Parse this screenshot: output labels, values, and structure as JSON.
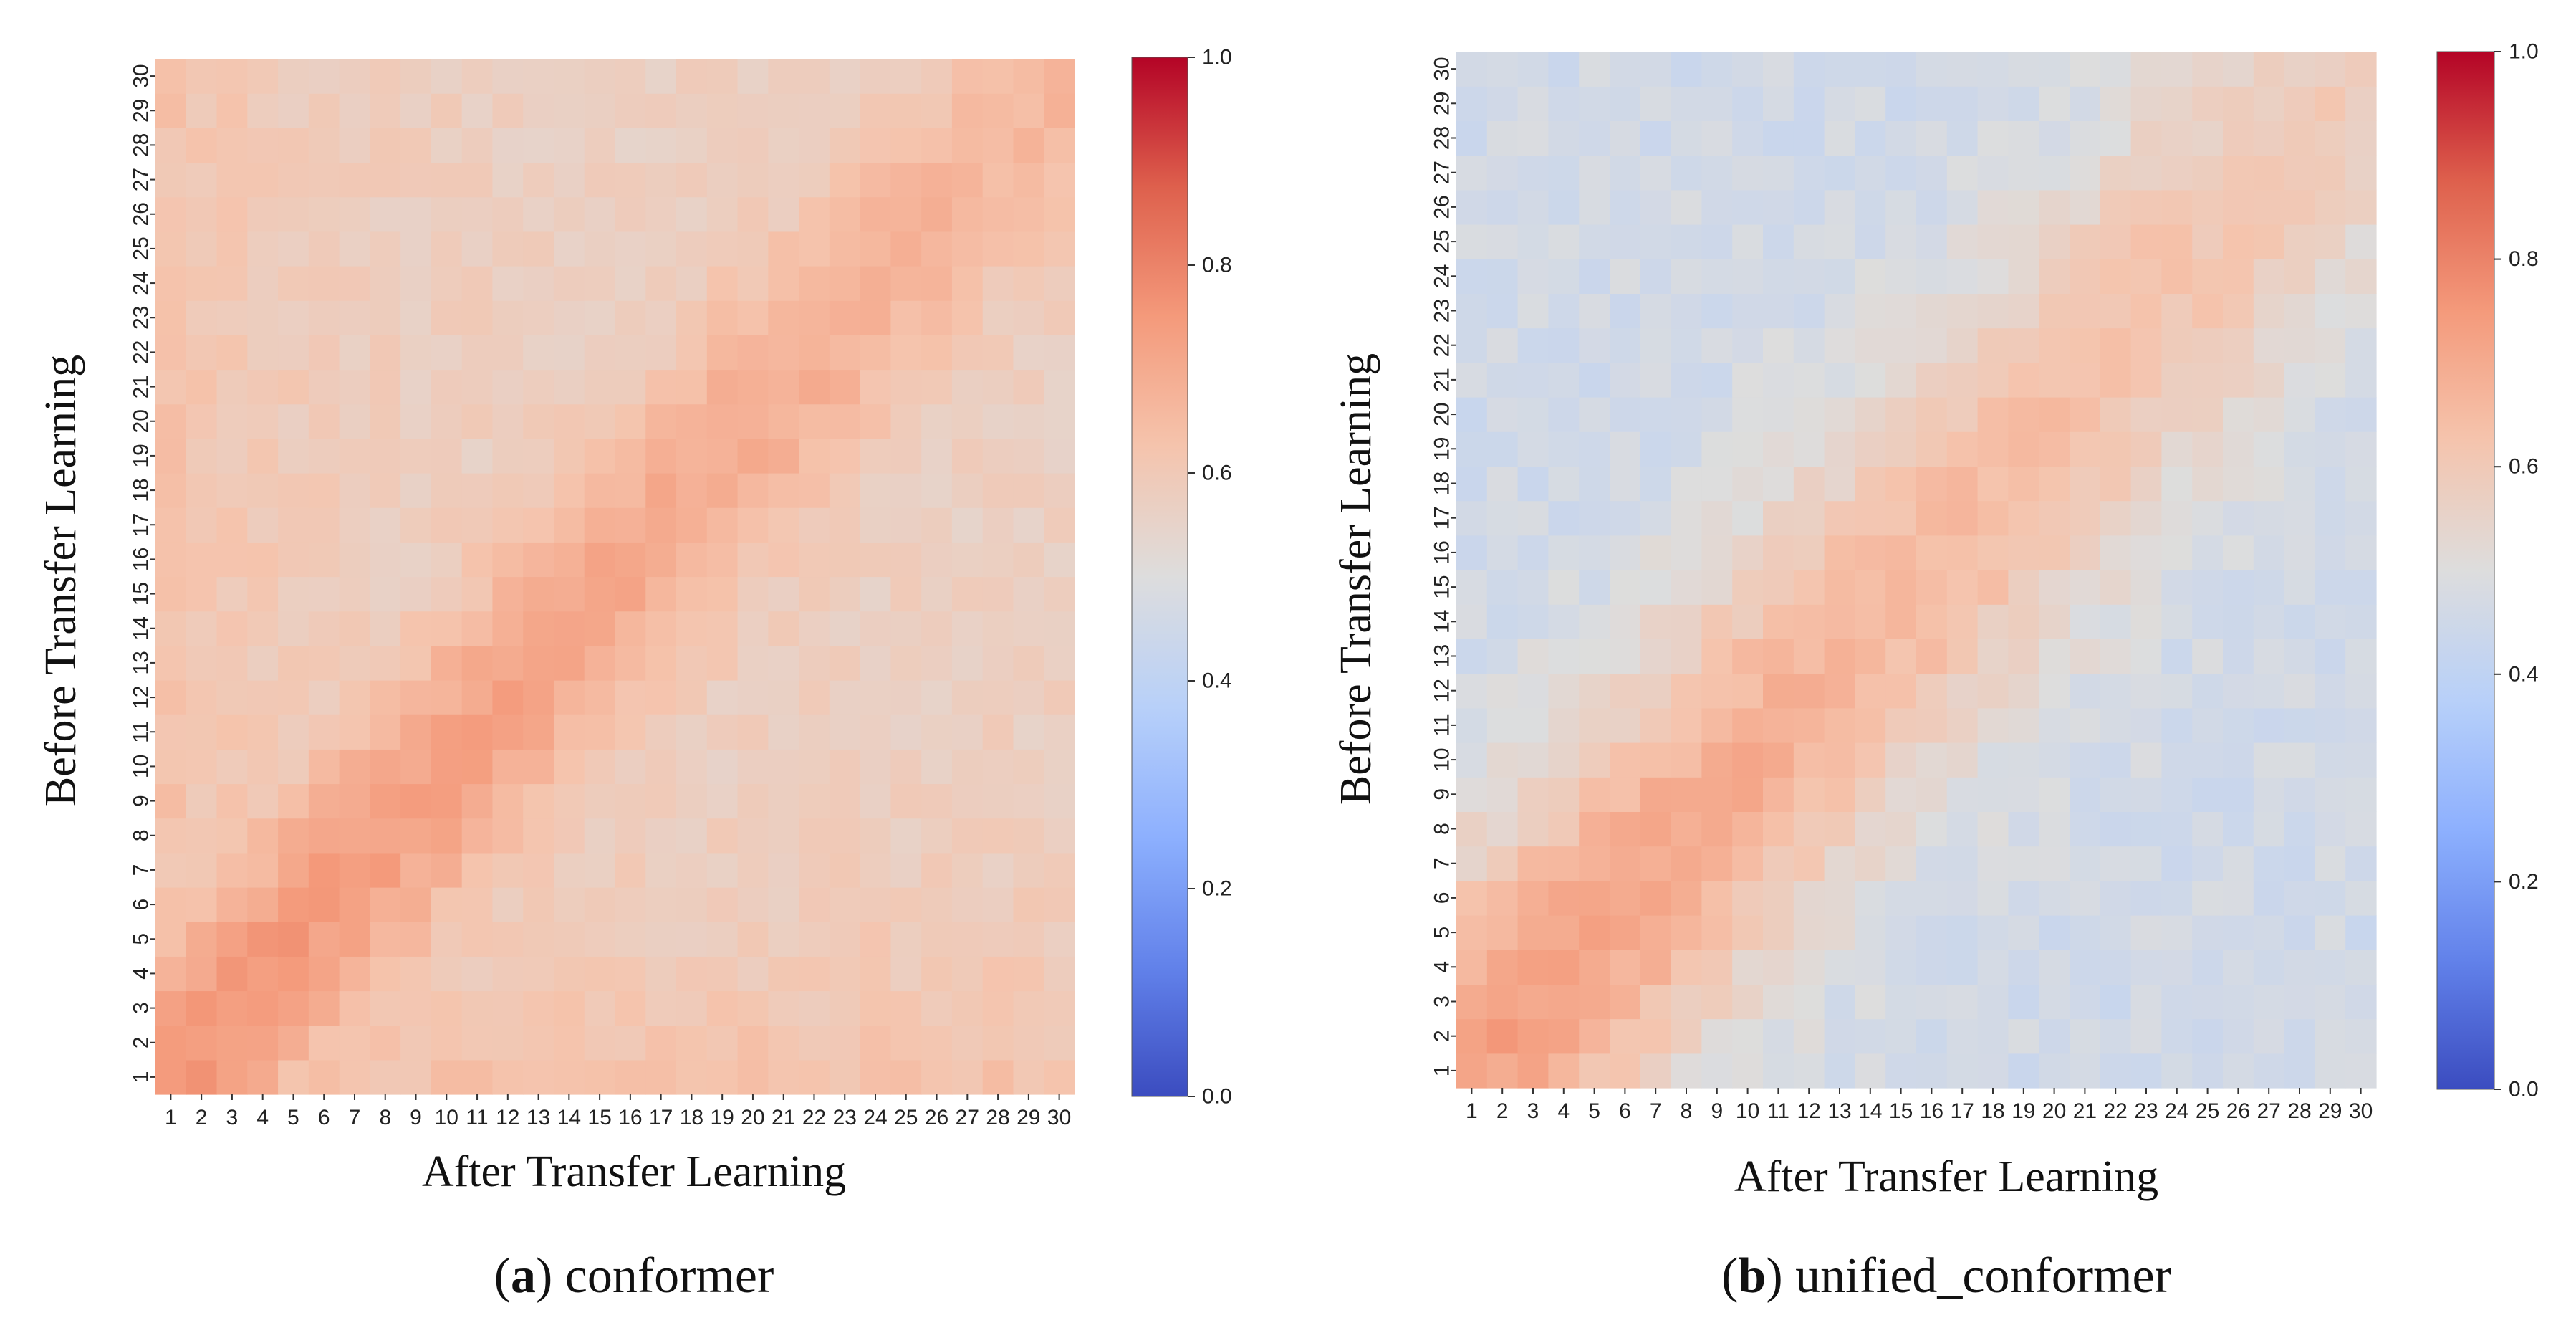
{
  "chart_data": [
    {
      "type": "heatmap",
      "id": "a",
      "caption_letter": "a",
      "caption_name": "conformer",
      "xlabel": "After Transfer Learning",
      "ylabel": "Before Transfer Learning",
      "x": [
        "1",
        "2",
        "3",
        "4",
        "5",
        "6",
        "7",
        "8",
        "9",
        "10",
        "11",
        "12",
        "13",
        "14",
        "15",
        "16",
        "17",
        "18",
        "19",
        "20",
        "21",
        "22",
        "23",
        "24",
        "25",
        "26",
        "27",
        "28",
        "29",
        "30"
      ],
      "y": [
        "1",
        "2",
        "3",
        "4",
        "5",
        "6",
        "7",
        "8",
        "9",
        "10",
        "11",
        "12",
        "13",
        "14",
        "15",
        "16",
        "17",
        "18",
        "19",
        "20",
        "21",
        "22",
        "23",
        "24",
        "25",
        "26",
        "27",
        "28",
        "29",
        "30"
      ],
      "colormap": "coolwarm",
      "vmin": 0.0,
      "vmax": 1.0,
      "colorbar_ticks": [
        "0.0",
        "0.2",
        "0.4",
        "0.6",
        "0.8",
        "1.0"
      ],
      "pattern": {
        "background": 0.57,
        "peak": 0.75,
        "band_width": 3.0,
        "min_value": 0.54,
        "edge_level": 0.64,
        "edge_width": 4.5,
        "noise": 0.025,
        "seed": 7
      }
    },
    {
      "type": "heatmap",
      "id": "b",
      "caption_letter": "b",
      "caption_name": "unified_conformer",
      "xlabel": "After Transfer Learning",
      "ylabel": "Before Transfer Learning",
      "x": [
        "1",
        "2",
        "3",
        "4",
        "5",
        "6",
        "7",
        "8",
        "9",
        "10",
        "11",
        "12",
        "13",
        "14",
        "15",
        "16",
        "17",
        "18",
        "19",
        "20",
        "21",
        "22",
        "23",
        "24",
        "25",
        "26",
        "27",
        "28",
        "29",
        "30"
      ],
      "y": [
        "1",
        "2",
        "3",
        "4",
        "5",
        "6",
        "7",
        "8",
        "9",
        "10",
        "11",
        "12",
        "13",
        "14",
        "15",
        "16",
        "17",
        "18",
        "19",
        "20",
        "21",
        "22",
        "23",
        "24",
        "25",
        "26",
        "27",
        "28",
        "29",
        "30"
      ],
      "colormap": "coolwarm",
      "vmin": 0.0,
      "vmax": 1.0,
      "colorbar_ticks": [
        "0.0",
        "0.2",
        "0.4",
        "0.6",
        "0.8",
        "1.0"
      ],
      "pattern": {
        "background": 0.46,
        "peak": 0.72,
        "band_width": 4.5,
        "min_value": 0.42,
        "edge_level": 0.0,
        "edge_width": 0.0,
        "noise": 0.03,
        "seed": 19
      }
    }
  ]
}
